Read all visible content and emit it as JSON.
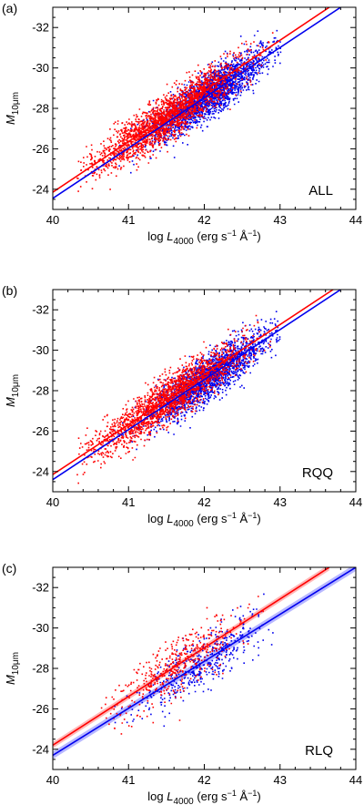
{
  "figure": {
    "xlabel": {
      "prefix": "log ",
      "symbol": "L",
      "subscript": "4000",
      "units_open": " (erg s",
      "sup1": "−1",
      "units_mid": " Å",
      "sup2": "−1",
      "units_close": ")"
    },
    "ylabel": {
      "symbol": "M",
      "subscript": "10μm"
    },
    "x_ticks": [
      "40",
      "41",
      "42",
      "43",
      "44"
    ],
    "y_ticks": [
      "-32",
      "-30",
      "-28",
      "-26",
      "-24"
    ],
    "colors": {
      "red": "#ff0000",
      "blue": "#0000ee",
      "red_band": "#ff9a9a",
      "blue_band": "#9a9aff"
    }
  },
  "chart_data": [
    {
      "type": "scatter",
      "panel_label": "(a)",
      "sample_label": "ALL",
      "xlim": [
        40,
        44
      ],
      "ylim": [
        -23,
        -33
      ],
      "y_axis_inverted": true,
      "grid": false,
      "series": [
        {
          "color": "red",
          "cloud": {
            "x_mean": 41.5,
            "x_sd": 0.5,
            "x_range": [
              40.3,
              42.9
            ],
            "y_scatter": 0.55,
            "n_points": 2200
          },
          "fit": {
            "x": [
              40.0,
              43.65
            ],
            "y": [
              -23.85,
              -33.0
            ]
          }
        },
        {
          "color": "blue",
          "cloud": {
            "x_mean": 42.05,
            "x_sd": 0.38,
            "x_range": [
              40.8,
              43.0
            ],
            "y_scatter": 0.55,
            "n_points": 2200
          },
          "fit": {
            "x": [
              40.0,
              43.8
            ],
            "y": [
              -23.55,
              -33.0
            ]
          }
        }
      ]
    },
    {
      "type": "scatter",
      "panel_label": "(b)",
      "sample_label": "RQQ",
      "xlim": [
        40,
        44
      ],
      "ylim": [
        -23,
        -33
      ],
      "y_axis_inverted": true,
      "grid": false,
      "series": [
        {
          "color": "red",
          "cloud": {
            "x_mean": 41.5,
            "x_sd": 0.5,
            "x_range": [
              40.3,
              42.9
            ],
            "y_scatter": 0.55,
            "n_points": 2000
          },
          "fit": {
            "x": [
              40.0,
              43.7
            ],
            "y": [
              -23.85,
              -33.0
            ]
          }
        },
        {
          "color": "blue",
          "cloud": {
            "x_mean": 42.05,
            "x_sd": 0.38,
            "x_range": [
              40.8,
              43.0
            ],
            "y_scatter": 0.55,
            "n_points": 2000
          },
          "fit": {
            "x": [
              40.0,
              43.8
            ],
            "y": [
              -23.6,
              -33.0
            ]
          }
        }
      ]
    },
    {
      "type": "scatter",
      "panel_label": "(c)",
      "sample_label": "RLQ",
      "xlim": [
        40,
        44
      ],
      "ylim": [
        -23,
        -33
      ],
      "y_axis_inverted": true,
      "grid": false,
      "series": [
        {
          "color": "red",
          "cloud": {
            "x_mean": 41.6,
            "x_sd": 0.45,
            "x_range": [
              40.4,
              42.8
            ],
            "y_scatter": 0.7,
            "n_points": 450
          },
          "fit": {
            "x": [
              40.0,
              43.65
            ],
            "y": [
              -24.2,
              -33.0
            ]
          },
          "confidence_band": 0.15
        },
        {
          "color": "blue",
          "cloud": {
            "x_mean": 41.95,
            "x_sd": 0.4,
            "x_range": [
              40.6,
              42.9
            ],
            "y_scatter": 0.7,
            "n_points": 450
          },
          "fit": {
            "x": [
              40.0,
              44.0
            ],
            "y": [
              -23.7,
              -33.0
            ]
          },
          "confidence_band": 0.18
        }
      ]
    }
  ]
}
